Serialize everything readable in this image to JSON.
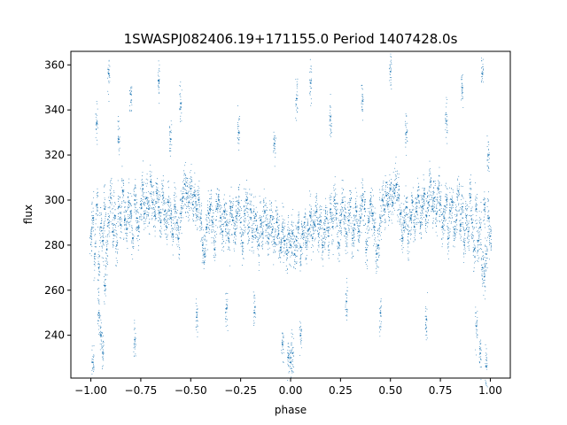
{
  "chart_data": {
    "type": "scatter",
    "title": "1SWASPJ082406.19+171155.0 Period 1407428.0s",
    "xlabel": "phase",
    "ylabel": "flux",
    "xlim": [
      -1.1,
      1.1
    ],
    "ylim": [
      221,
      366
    ],
    "xticks": [
      -1.0,
      -0.75,
      -0.5,
      -0.25,
      0.0,
      0.25,
      0.5,
      0.75,
      1.0
    ],
    "xtick_labels": [
      "−1.00",
      "−0.75",
      "−0.50",
      "−0.25",
      "0.00",
      "0.25",
      "0.50",
      "0.75",
      "1.00"
    ],
    "yticks": [
      240,
      260,
      280,
      300,
      320,
      340,
      360
    ],
    "ytick_labels": [
      "240",
      "260",
      "280",
      "300",
      "320",
      "340",
      "360"
    ],
    "grid": false,
    "legend": "none",
    "marker_color": "#1f77b4",
    "series": [
      {
        "description_points": "phase-folded light curve, mirrored about phase 0; points listed as [phase, flux]",
        "points": [
          [
            -1.0,
            284
          ],
          [
            -0.99,
            292
          ],
          [
            -0.98,
            276
          ],
          [
            -0.97,
            298
          ],
          [
            -0.96,
            270
          ],
          [
            -0.95,
            288
          ],
          [
            -0.94,
            282
          ],
          [
            -0.93,
            296
          ],
          [
            -0.92,
            278
          ],
          [
            -0.91,
            290
          ],
          [
            -0.9,
            301
          ],
          [
            -0.89,
            286
          ],
          [
            -0.88,
            293
          ],
          [
            -0.87,
            280
          ],
          [
            -0.86,
            297
          ],
          [
            -0.85,
            289
          ],
          [
            -0.84,
            304
          ],
          [
            -0.83,
            291
          ],
          [
            -0.82,
            287
          ],
          [
            -0.81,
            299
          ],
          [
            -0.8,
            295
          ],
          [
            -0.79,
            283
          ],
          [
            -0.78,
            300
          ],
          [
            -0.77,
            292
          ],
          [
            -0.76,
            288
          ],
          [
            -0.75,
            298
          ],
          [
            -0.74,
            305
          ],
          [
            -0.73,
            294
          ],
          [
            -0.72,
            301
          ],
          [
            -0.71,
            296
          ],
          [
            -0.7,
            308
          ],
          [
            -0.69,
            299
          ],
          [
            -0.68,
            293
          ],
          [
            -0.67,
            303
          ],
          [
            -0.66,
            297
          ],
          [
            -0.65,
            290
          ],
          [
            -0.64,
            302
          ],
          [
            -0.63,
            295
          ],
          [
            -0.62,
            288
          ],
          [
            -0.61,
            299
          ],
          [
            -0.6,
            292
          ],
          [
            -0.59,
            285
          ],
          [
            -0.58,
            297
          ],
          [
            -0.57,
            290
          ],
          [
            -0.56,
            283
          ],
          [
            -0.55,
            294
          ],
          [
            -0.54,
            301
          ],
          [
            -0.53,
            307
          ],
          [
            -0.52,
            303
          ],
          [
            -0.51,
            299
          ],
          [
            -0.5,
            305
          ],
          [
            -0.49,
            298
          ],
          [
            -0.48,
            302
          ],
          [
            -0.47,
            296
          ],
          [
            -0.46,
            300
          ],
          [
            -0.45,
            292
          ],
          [
            -0.44,
            280
          ],
          [
            -0.43,
            276
          ],
          [
            -0.42,
            288
          ],
          [
            -0.41,
            294
          ],
          [
            -0.4,
            298
          ],
          [
            -0.39,
            290
          ],
          [
            -0.38,
            278
          ],
          [
            -0.37,
            296
          ],
          [
            -0.36,
            300
          ],
          [
            -0.35,
            292
          ],
          [
            -0.34,
            286
          ],
          [
            -0.33,
            295
          ],
          [
            -0.32,
            289
          ],
          [
            -0.31,
            283
          ],
          [
            -0.3,
            297
          ],
          [
            -0.29,
            291
          ],
          [
            -0.28,
            285
          ],
          [
            -0.27,
            293
          ],
          [
            -0.26,
            299
          ],
          [
            -0.25,
            290
          ],
          [
            -0.24,
            281
          ],
          [
            -0.23,
            294
          ],
          [
            -0.22,
            300
          ],
          [
            -0.21,
            288
          ],
          [
            -0.2,
            296
          ],
          [
            -0.19,
            284
          ],
          [
            -0.18,
            292
          ],
          [
            -0.17,
            287
          ],
          [
            -0.16,
            280
          ],
          [
            -0.15,
            291
          ],
          [
            -0.14,
            285
          ],
          [
            -0.13,
            295
          ],
          [
            -0.12,
            289
          ],
          [
            -0.11,
            283
          ],
          [
            -0.1,
            293
          ],
          [
            -0.09,
            287
          ],
          [
            -0.08,
            281
          ],
          [
            -0.07,
            290
          ],
          [
            -0.06,
            285
          ],
          [
            -0.05,
            279
          ],
          [
            -0.04,
            288
          ],
          [
            -0.03,
            282
          ],
          [
            -0.02,
            276
          ],
          [
            -0.01,
            285
          ],
          [
            0.0,
            280
          ],
          [
            0.01,
            285
          ],
          [
            0.02,
            276
          ],
          [
            0.03,
            282
          ],
          [
            0.04,
            288
          ],
          [
            0.05,
            279
          ],
          [
            0.06,
            285
          ],
          [
            0.07,
            290
          ],
          [
            0.08,
            281
          ],
          [
            0.09,
            287
          ],
          [
            0.1,
            293
          ],
          [
            0.11,
            283
          ],
          [
            0.12,
            289
          ],
          [
            0.13,
            295
          ],
          [
            0.14,
            285
          ],
          [
            0.15,
            291
          ],
          [
            0.16,
            280
          ],
          [
            0.17,
            287
          ],
          [
            0.18,
            292
          ],
          [
            0.19,
            284
          ],
          [
            0.2,
            296
          ],
          [
            0.21,
            288
          ],
          [
            0.22,
            300
          ],
          [
            0.23,
            294
          ],
          [
            0.24,
            281
          ],
          [
            0.25,
            290
          ],
          [
            0.26,
            299
          ],
          [
            0.27,
            293
          ],
          [
            0.28,
            285
          ],
          [
            0.29,
            291
          ],
          [
            0.3,
            297
          ],
          [
            0.31,
            283
          ],
          [
            0.32,
            289
          ],
          [
            0.33,
            295
          ],
          [
            0.34,
            286
          ],
          [
            0.35,
            292
          ],
          [
            0.36,
            300
          ],
          [
            0.37,
            296
          ],
          [
            0.38,
            278
          ],
          [
            0.39,
            290
          ],
          [
            0.4,
            298
          ],
          [
            0.41,
            294
          ],
          [
            0.42,
            288
          ],
          [
            0.43,
            276
          ],
          [
            0.44,
            280
          ],
          [
            0.45,
            292
          ],
          [
            0.46,
            300
          ],
          [
            0.47,
            296
          ],
          [
            0.48,
            302
          ],
          [
            0.49,
            298
          ],
          [
            0.5,
            305
          ],
          [
            0.51,
            299
          ],
          [
            0.52,
            303
          ],
          [
            0.53,
            307
          ],
          [
            0.54,
            301
          ],
          [
            0.55,
            294
          ],
          [
            0.56,
            283
          ],
          [
            0.57,
            290
          ],
          [
            0.58,
            297
          ],
          [
            0.59,
            285
          ],
          [
            0.6,
            292
          ],
          [
            0.61,
            299
          ],
          [
            0.62,
            288
          ],
          [
            0.63,
            295
          ],
          [
            0.64,
            302
          ],
          [
            0.65,
            290
          ],
          [
            0.66,
            297
          ],
          [
            0.67,
            303
          ],
          [
            0.68,
            293
          ],
          [
            0.69,
            299
          ],
          [
            0.7,
            308
          ],
          [
            0.71,
            296
          ],
          [
            0.72,
            301
          ],
          [
            0.73,
            294
          ],
          [
            0.74,
            305
          ],
          [
            0.75,
            298
          ],
          [
            0.76,
            288
          ],
          [
            0.77,
            292
          ],
          [
            0.78,
            300
          ],
          [
            0.79,
            283
          ],
          [
            0.8,
            295
          ],
          [
            0.81,
            299
          ],
          [
            0.82,
            287
          ],
          [
            0.83,
            291
          ],
          [
            0.84,
            304
          ],
          [
            0.85,
            289
          ],
          [
            0.86,
            297
          ],
          [
            0.87,
            280
          ],
          [
            0.88,
            293
          ],
          [
            0.89,
            286
          ],
          [
            0.9,
            301
          ],
          [
            0.91,
            290
          ],
          [
            0.92,
            278
          ],
          [
            0.93,
            296
          ],
          [
            0.94,
            282
          ],
          [
            0.95,
            288
          ],
          [
            0.96,
            270
          ],
          [
            0.97,
            298
          ],
          [
            0.98,
            276
          ],
          [
            0.99,
            292
          ],
          [
            1.0,
            284
          ],
          [
            -0.96,
            250
          ],
          [
            -0.95,
            240
          ],
          [
            -0.94,
            232
          ],
          [
            -0.93,
            262
          ],
          [
            -0.97,
            334
          ],
          [
            -0.91,
            356
          ],
          [
            -0.86,
            327
          ],
          [
            -0.8,
            347
          ],
          [
            -0.78,
            238
          ],
          [
            -0.66,
            353
          ],
          [
            -0.6,
            327
          ],
          [
            -0.55,
            343
          ],
          [
            -0.47,
            248
          ],
          [
            -0.32,
            252
          ],
          [
            -0.26,
            330
          ],
          [
            -0.18,
            250
          ],
          [
            -0.08,
            325
          ],
          [
            -0.04,
            236
          ],
          [
            -0.01,
            230
          ],
          [
            0.0,
            228
          ],
          [
            0.01,
            232
          ],
          [
            0.03,
            345
          ],
          [
            0.05,
            240
          ],
          [
            0.1,
            352
          ],
          [
            0.2,
            337
          ],
          [
            0.28,
            255
          ],
          [
            0.36,
            344
          ],
          [
            0.45,
            250
          ],
          [
            0.5,
            357
          ],
          [
            0.58,
            330
          ],
          [
            0.68,
            247
          ],
          [
            0.78,
            335
          ],
          [
            0.86,
            350
          ],
          [
            0.93,
            244
          ],
          [
            0.95,
            232
          ],
          [
            0.96,
            356
          ],
          [
            0.97,
            266
          ],
          [
            0.99,
            320
          ],
          [
            -0.99,
            228
          ],
          [
            0.98,
            226
          ]
        ]
      }
    ]
  }
}
